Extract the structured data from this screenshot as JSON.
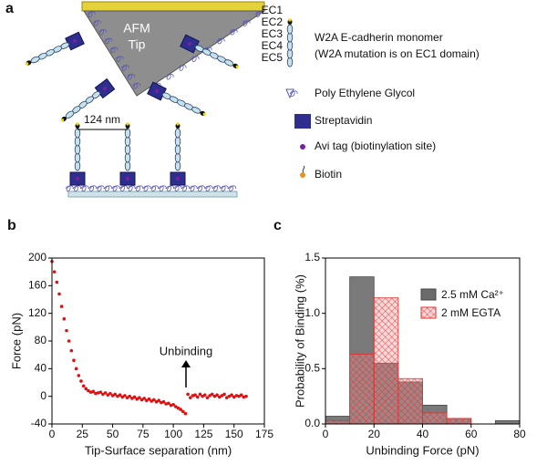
{
  "diagram": {
    "panel_label": "a",
    "tip_label": [
      "AFM",
      "Tip"
    ],
    "spacing_label": "124 nm",
    "domains": [
      "EC1",
      "EC2",
      "EC3",
      "EC4",
      "EC5"
    ],
    "legend": [
      {
        "text": [
          "W2A E-cadherin monomer",
          "(W2A mutation is on EC1 domain)"
        ]
      },
      {
        "text": [
          "Poly Ethylene Glycol"
        ]
      },
      {
        "text": [
          "Streptavidin"
        ]
      },
      {
        "text": [
          "Avi tag (biotinylation site)"
        ]
      },
      {
        "text": [
          "Biotin"
        ]
      }
    ]
  },
  "chart_data": [
    {
      "type": "scatter",
      "panel_label": "b",
      "xlabel": "Tip-Surface separation (nm)",
      "ylabel": "Force (pN)",
      "annotation": "Unbinding",
      "color": "#e01010",
      "x": [
        0,
        2,
        4,
        6,
        8,
        10,
        12,
        14,
        16,
        18,
        20,
        22,
        24,
        26,
        28,
        30,
        32,
        34,
        36,
        38,
        40,
        42,
        44,
        46,
        48,
        50,
        52,
        54,
        56,
        58,
        60,
        62,
        64,
        66,
        68,
        70,
        72,
        74,
        76,
        78,
        80,
        82,
        84,
        86,
        88,
        90,
        92,
        94,
        96,
        98,
        100,
        102,
        104,
        106,
        108,
        110,
        112,
        114,
        116,
        118,
        120,
        122,
        124,
        126,
        128,
        130,
        132,
        134,
        136,
        138,
        140,
        142,
        144,
        146,
        148,
        150,
        152,
        154,
        156,
        158,
        160
      ],
      "values": [
        195,
        180,
        165,
        148,
        130,
        112,
        95,
        80,
        66,
        52,
        40,
        30,
        22,
        15,
        11,
        8,
        6,
        7,
        4,
        5,
        6,
        3,
        5,
        2,
        4,
        1,
        3,
        0,
        2,
        -1,
        1,
        -2,
        0,
        -3,
        -1,
        -4,
        -2,
        -5,
        -3,
        -6,
        -4,
        -7,
        -5,
        -8,
        -6,
        -9,
        -8,
        -11,
        -10,
        -13,
        -12,
        -15,
        -17,
        -19,
        -22,
        -25,
        3,
        -2,
        1,
        2,
        -1,
        3,
        0,
        2,
        -2,
        1,
        3,
        0,
        2,
        -1,
        1,
        3,
        -2,
        0,
        2,
        -1,
        1,
        0,
        2,
        -1,
        0
      ],
      "xlim": [
        0,
        175
      ],
      "xticks": [
        0,
        25,
        50,
        75,
        100,
        125,
        150,
        175
      ],
      "ylim": [
        -40,
        200
      ],
      "yticks": [
        -40,
        0,
        40,
        80,
        120,
        160,
        200
      ]
    },
    {
      "type": "histogram",
      "panel_label": "c",
      "xlabel": "Unbinding Force (pN)",
      "ylabel": "Probability of Binding (%)",
      "bins": [
        0,
        10,
        20,
        30,
        40,
        50,
        60,
        70,
        80
      ],
      "series": [
        {
          "name": "2.5 mM Ca²⁺",
          "color": "#6b6b6b",
          "values": [
            0.07,
            1.33,
            0.55,
            0.38,
            0.17,
            0.05,
            0,
            0.03
          ]
        },
        {
          "name": "2 mM EGTA",
          "color": "#e03030",
          "values": [
            0.03,
            0.63,
            1.14,
            0.41,
            0.1,
            0.05,
            0,
            0
          ]
        }
      ],
      "xlim": [
        0,
        80
      ],
      "xticks": [
        0,
        20,
        40,
        60,
        80
      ],
      "ylim": [
        0,
        1.5
      ],
      "yticks": [
        {
          "value": 0,
          "label": "0.0"
        },
        0.5,
        {
          "value": 1,
          "label": "1.0"
        },
        1.5
      ],
      "legend": "upper right"
    }
  ]
}
